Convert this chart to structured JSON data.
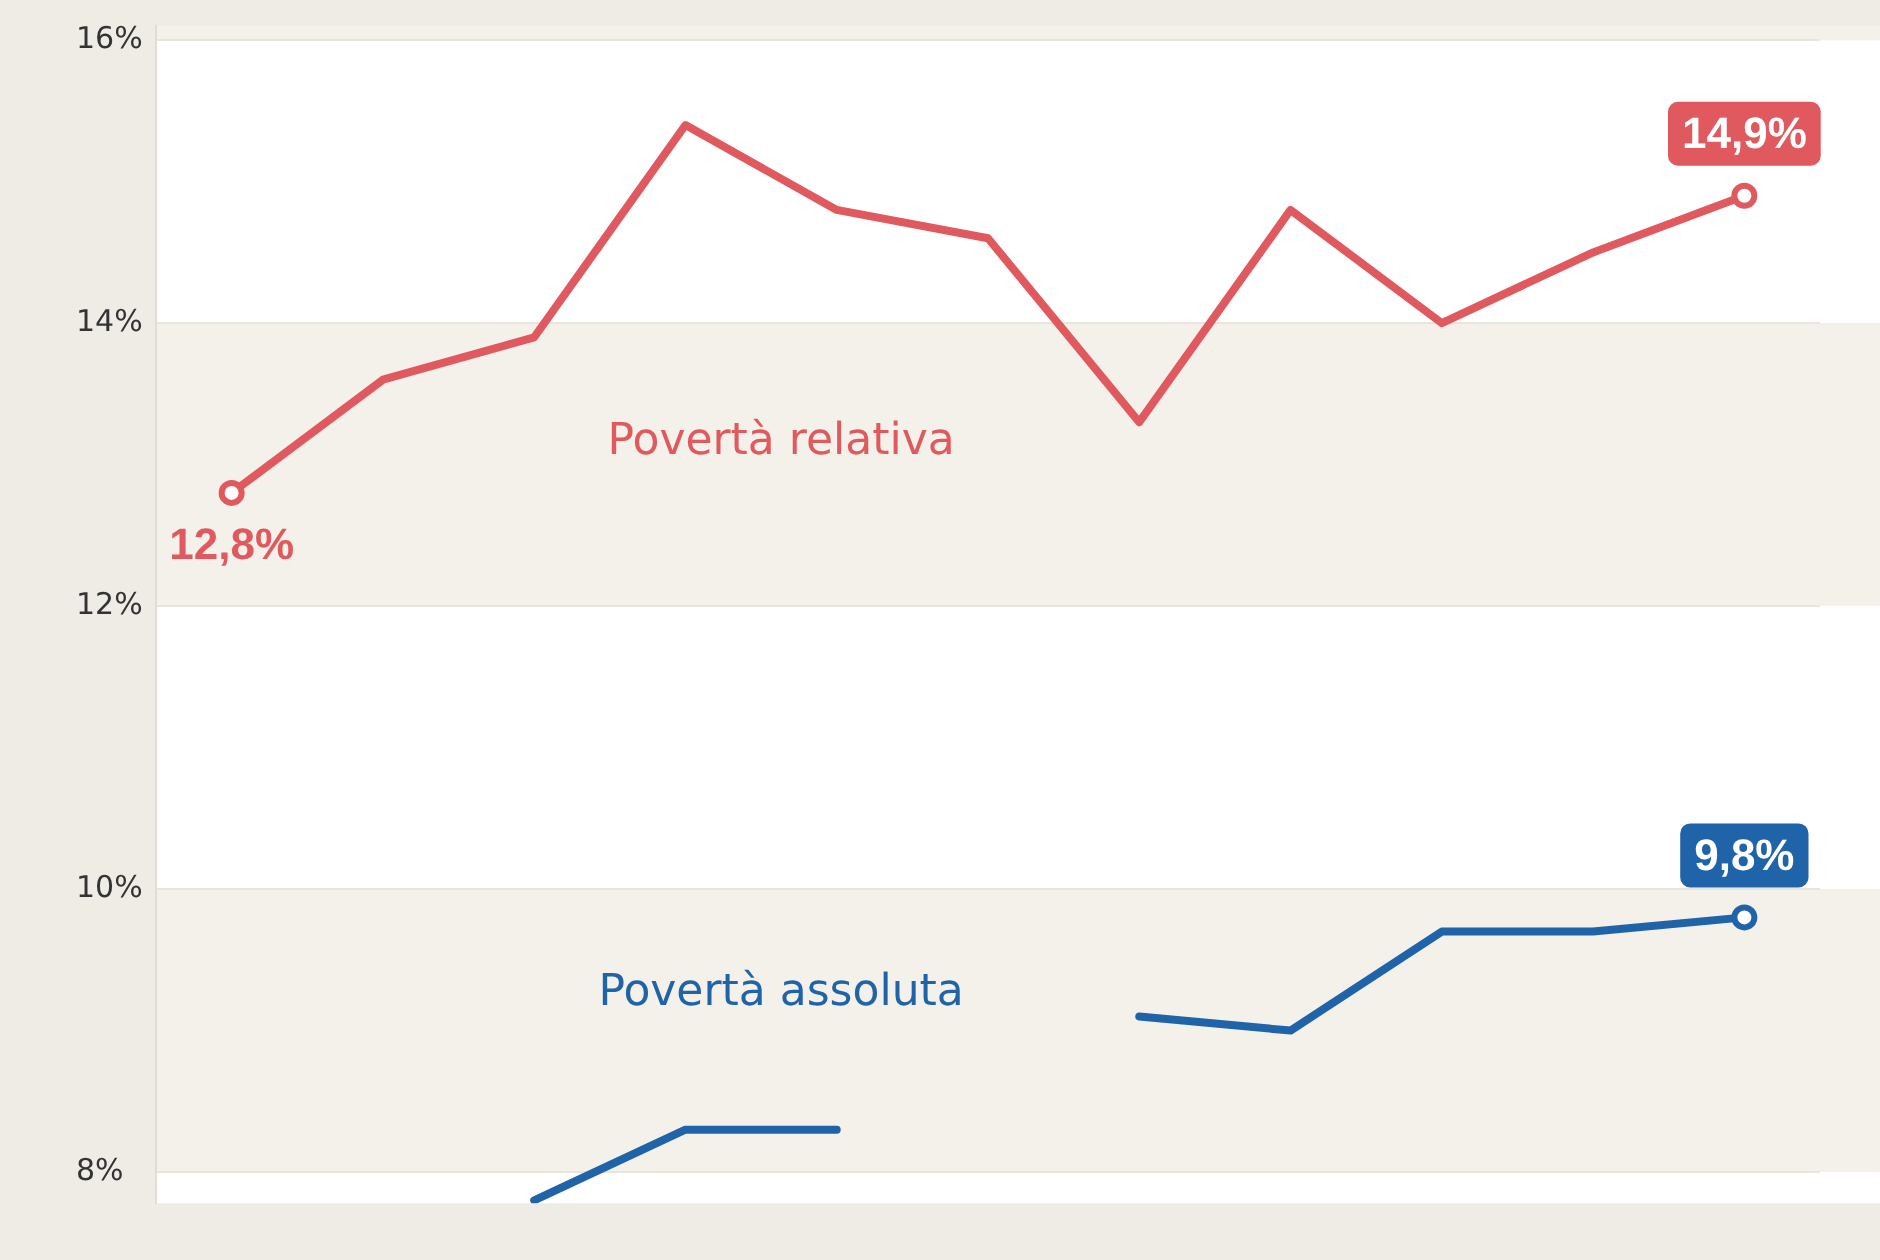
{
  "chart_data": {
    "type": "line",
    "categories": [
      null,
      null,
      null,
      null,
      null,
      null,
      null,
      null,
      null,
      null,
      null
    ],
    "series": [
      {
        "name": "Povertà relativa",
        "color": "#e0595e",
        "values": [
          12.8,
          13.6,
          13.9,
          15.4,
          14.8,
          14.6,
          13.3,
          14.8,
          14.0,
          14.5,
          14.9
        ],
        "value_labels": [
          "12,8%",
          null,
          null,
          null,
          null,
          null,
          null,
          null,
          null,
          null,
          "14,9%"
        ]
      },
      {
        "name": "Povertà assoluta",
        "color": "#1f63a8",
        "values": [
          null,
          null,
          7.8,
          8.3,
          8.3,
          null,
          9.1,
          9.0,
          9.7,
          9.7,
          9.8
        ],
        "value_labels": [
          null,
          null,
          null,
          null,
          null,
          null,
          null,
          null,
          null,
          null,
          "9,8%"
        ]
      }
    ],
    "ylim": [
      7.78,
      16.1
    ],
    "yticks": [
      {
        "value": 8,
        "label": "8%"
      },
      {
        "value": 10,
        "label": "10%"
      },
      {
        "value": 12,
        "label": "12%"
      },
      {
        "value": 14,
        "label": "14%"
      },
      {
        "value": 16,
        "label": "16%"
      }
    ],
    "grid": true,
    "legend": false,
    "line_style": "solid"
  }
}
